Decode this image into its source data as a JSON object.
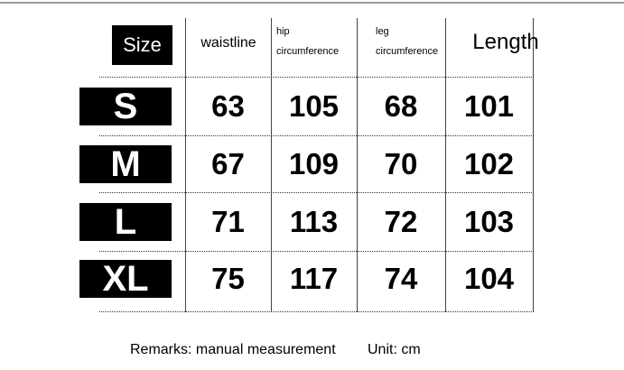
{
  "table": {
    "header": [
      "Size",
      "waistline",
      "hip circumference",
      "leg circumference",
      "Length"
    ],
    "rows": [
      [
        "S",
        63,
        105,
        68,
        101
      ],
      [
        "M",
        67,
        109,
        70,
        102
      ],
      [
        "L",
        71,
        113,
        72,
        103
      ],
      [
        "XL",
        75,
        117,
        74,
        104
      ]
    ]
  },
  "footer": {
    "remarks": "Remarks: manual measurement",
    "unit": "Unit: cm"
  }
}
